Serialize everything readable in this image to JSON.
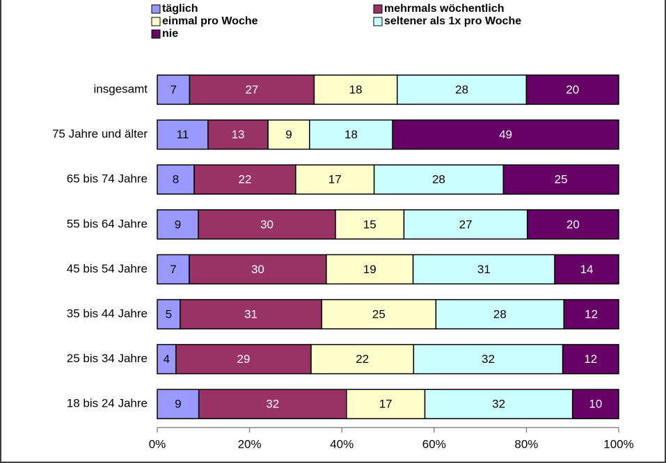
{
  "chart_data": {
    "type": "bar",
    "orientation": "horizontal",
    "stacked": "percent",
    "categories": [
      "insgesamt",
      "75 Jahre und älter",
      "65 bis 74 Jahre",
      "55 bis 64 Jahre",
      "45 bis 54 Jahre",
      "35 bis 44 Jahre",
      "25 bis 34 Jahre",
      "18 bis 24 Jahre"
    ],
    "series": [
      {
        "name": "täglich",
        "color": "#9999ff",
        "label_color": "#000000",
        "values": [
          7,
          11,
          8,
          9,
          7,
          5,
          4,
          9
        ]
      },
      {
        "name": "mehrmals wöchentlich",
        "color": "#993366",
        "label_color": "#ffffff",
        "values": [
          27,
          13,
          22,
          30,
          30,
          31,
          29,
          32
        ]
      },
      {
        "name": "einmal pro Woche",
        "color": "#ffffcc",
        "label_color": "#000000",
        "values": [
          18,
          9,
          17,
          15,
          19,
          25,
          22,
          17
        ]
      },
      {
        "name": "seltener als 1x pro Woche",
        "color": "#ccffff",
        "label_color": "#000000",
        "values": [
          28,
          18,
          28,
          27,
          31,
          28,
          32,
          32
        ]
      },
      {
        "name": "nie",
        "color": "#660066",
        "label_color": "#ffffff",
        "values": [
          20,
          49,
          25,
          20,
          14,
          12,
          12,
          10
        ]
      }
    ],
    "xlim": [
      0,
      100
    ],
    "xticks": [
      {
        "value": 0,
        "label": "0%"
      },
      {
        "value": 20,
        "label": "20%"
      },
      {
        "value": 40,
        "label": "40%"
      },
      {
        "value": 60,
        "label": "60%"
      },
      {
        "value": 80,
        "label": "80%"
      },
      {
        "value": 100,
        "label": "100%"
      }
    ],
    "legend": "top"
  }
}
